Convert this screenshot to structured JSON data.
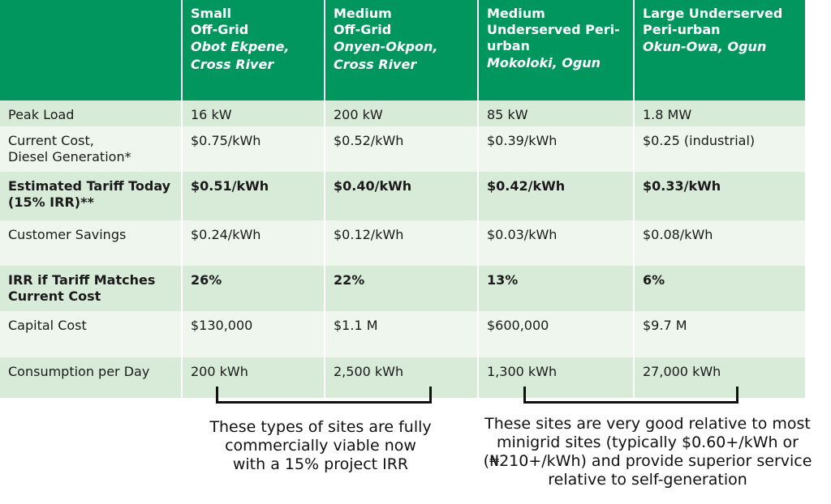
{
  "columns": [
    {
      "type": "Small\nOff-Grid",
      "location": "Obot Ekpene,\nCross River"
    },
    {
      "type": "Medium\nOff-Grid",
      "location": "Onyen-Okpon,\nCross River"
    },
    {
      "type": "Medium\nUnderserved Peri-\nurban",
      "location": "Mokoloki, Ogun"
    },
    {
      "type": "Large Underserved\nPeri-urban",
      "location": "Okun-Owa, Ogun"
    }
  ],
  "rows": [
    {
      "label": "Peak Load",
      "values": [
        "16 kW",
        "200 kW",
        "85 kW",
        "1.8 MW"
      ]
    },
    {
      "label": "Current Cost,\nDiesel Generation*",
      "values": [
        "$0.75/kWh",
        "$0.52/kWh",
        "$0.39/kWh",
        "$0.25 (industrial)"
      ]
    },
    {
      "label": "Estimated Tariff Today\n(15% IRR)**",
      "values": [
        "$0.51/kWh",
        "$0.40/kWh",
        "$0.42/kWh",
        "$0.33/kWh"
      ]
    },
    {
      "label": "Customer Savings",
      "values": [
        "$0.24/kWh",
        "$0.12/kWh",
        "$0.03/kWh",
        "$0.08/kWh"
      ]
    },
    {
      "label": "IRR if Tariff Matches\nCurrent Cost",
      "values": [
        "26%",
        "22%",
        "13%",
        "6%"
      ]
    },
    {
      "label": "Capital Cost",
      "values": [
        "$130,000",
        "$1.1 M",
        "$600,000",
        "$9.7 M"
      ]
    },
    {
      "label": "Consumption per Day",
      "values": [
        "200 kWh",
        "2,500 kWh",
        "1,300 kWh",
        "27,000 kWh"
      ]
    }
  ],
  "notes": {
    "left": "These types of sites are fully\ncommercially viable now\nwith a 15% project IRR",
    "right": "These sites are very good relative to most\nminigrid sites (typically $0.60+/kWh or\n(₦210+/kWh) and provide superior service\nrelative to self-generation"
  },
  "colors": {
    "header": "#00965e",
    "row_dark": "#d8ebd8",
    "row_light": "#eef6ee"
  }
}
